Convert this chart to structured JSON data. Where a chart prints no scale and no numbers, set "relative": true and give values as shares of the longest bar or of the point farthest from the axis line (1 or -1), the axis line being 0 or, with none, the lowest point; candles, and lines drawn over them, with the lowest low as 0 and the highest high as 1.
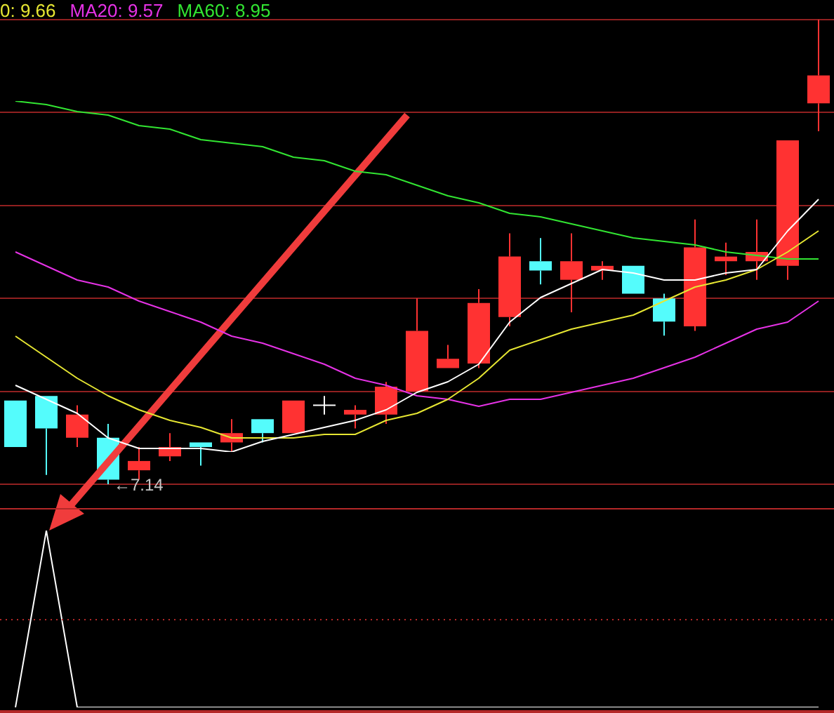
{
  "chart_data": [
    {
      "type": "candlestick",
      "relative": true,
      "grid": "y",
      "categories": [
        null,
        null,
        null,
        null,
        null,
        null,
        null,
        null,
        null,
        null,
        null,
        null,
        null,
        null,
        null,
        null,
        null,
        null,
        null,
        null,
        null,
        null,
        null,
        null,
        null,
        null,
        null
      ],
      "ohlc": [
        [
          0.18,
          0.18,
          0.08,
          0.08
        ],
        [
          0.19,
          0.19,
          0.02,
          0.12
        ],
        [
          0.1,
          0.17,
          0.08,
          0.15
        ],
        [
          0.1,
          0.13,
          0,
          0.01
        ],
        [
          0.03,
          0.08,
          0.01,
          0.05
        ],
        [
          0.06,
          0.11,
          0.05,
          0.08
        ],
        [
          0.09,
          0.09,
          0.04,
          0.08
        ],
        [
          0.09,
          0.14,
          0.07,
          0.11
        ],
        [
          0.14,
          0.14,
          0.09,
          0.11
        ],
        [
          0.11,
          0.18,
          0.11,
          0.18
        ],
        [
          0.17,
          0.19,
          0.15,
          0.17
        ],
        [
          0.15,
          0.17,
          0.12,
          0.16
        ],
        [
          0.15,
          0.22,
          0.13,
          0.21
        ],
        [
          0.2,
          0.4,
          0.2,
          0.33
        ],
        [
          0.25,
          0.3,
          0.25,
          0.27
        ],
        [
          0.26,
          0.42,
          0.25,
          0.39
        ],
        [
          0.36,
          0.54,
          0.34,
          0.49
        ],
        [
          0.48,
          0.53,
          0.43,
          0.46
        ],
        [
          0.44,
          0.54,
          0.37,
          0.48
        ],
        [
          0.46,
          0.48,
          0.44,
          0.47
        ],
        [
          0.47,
          0.47,
          0.41,
          0.41
        ],
        [
          0.4,
          0.41,
          0.32,
          0.35
        ],
        [
          0.34,
          0.57,
          0.33,
          0.51
        ],
        [
          0.48,
          0.52,
          0.45,
          0.49
        ],
        [
          0.48,
          0.57,
          0.44,
          0.5
        ],
        [
          0.47,
          0.74,
          0.44,
          0.74
        ],
        [
          0.82,
          1,
          0.76,
          0.88
        ]
      ],
      "colors": [
        "#54fcfc",
        "#54fcfc",
        "#ff3232",
        "#54fcfc",
        "#ff3232",
        "#ff3232",
        "#54fcfc",
        "#ff3232",
        "#54fcfc",
        "#ff3232",
        "#ffffff",
        "#ff3232",
        "#ff3232",
        "#ff3232",
        "#ff3232",
        "#ff3232",
        "#ff3232",
        "#54fcfc",
        "#ff3232",
        "#ff3232",
        "#54fcfc",
        "#54fcfc",
        "#ff3232",
        "#ff3232",
        "#ff3232",
        "#ff3232",
        "#ff3232"
      ],
      "annotations": [
        {
          "text": "←7.14",
          "y": 0
        }
      ]
    },
    {
      "type": "line",
      "relative": true,
      "categories": [
        null,
        null,
        null,
        null,
        null,
        null,
        null,
        null,
        null,
        null,
        null,
        null,
        null,
        null,
        null,
        null,
        null,
        null,
        null,
        null,
        null,
        null,
        null,
        null,
        null,
        null,
        null
      ],
      "series": [
        {
          "color": "#ffffff",
          "values": [
            0.19,
            0.15,
            0.11,
            0.04,
            0.01,
            0.01,
            0.01,
            0,
            0.03,
            0.05,
            0.07,
            0.09,
            0.12,
            0.17,
            0.2,
            0.25,
            0.37,
            0.44,
            0.48,
            0.52,
            0.51,
            0.49,
            0.49,
            0.51,
            0.52,
            0.63,
            0.72
          ]
        },
        {
          "name": "0: 9.66",
          "color": "#e6e632",
          "values": [
            0.33,
            0.27,
            0.21,
            0.16,
            0.12,
            0.09,
            0.07,
            0.04,
            0.04,
            0.04,
            0.05,
            0.05,
            0.09,
            0.11,
            0.15,
            0.21,
            0.29,
            0.32,
            0.35,
            0.37,
            0.39,
            0.43,
            0.47,
            0.49,
            0.52,
            0.57,
            0.63
          ]
        },
        {
          "name": "MA20: 9.57",
          "color": "#e632e6",
          "values": [
            0.57,
            0.53,
            0.49,
            0.47,
            0.43,
            0.4,
            0.37,
            0.33,
            0.31,
            0.28,
            0.25,
            0.21,
            0.19,
            0.16,
            0.15,
            0.13,
            0.15,
            0.15,
            0.17,
            0.19,
            0.21,
            0.24,
            0.27,
            0.31,
            0.35,
            0.37,
            0.43
          ]
        },
        {
          "name": "MA60: 8.95",
          "color": "#32e632",
          "values": [
            1,
            0.99,
            0.97,
            0.96,
            0.93,
            0.92,
            0.89,
            0.88,
            0.87,
            0.84,
            0.83,
            0.8,
            0.79,
            0.76,
            0.73,
            0.71,
            0.68,
            0.67,
            0.65,
            0.63,
            0.61,
            0.6,
            0.59,
            0.57,
            0.56,
            0.55,
            0.55
          ]
        }
      ]
    },
    {
      "type": "line",
      "relative": true,
      "marker": "none",
      "categories": [
        null,
        null,
        null,
        null,
        null,
        null,
        null,
        null,
        null,
        null,
        null,
        null,
        null,
        null,
        null,
        null,
        null,
        null,
        null,
        null,
        null,
        null,
        null,
        null,
        null,
        null,
        null
      ],
      "series": [
        {
          "color": "#ffffff",
          "values": [
            0,
            1,
            0,
            0,
            0,
            0,
            0,
            0,
            0,
            0,
            0,
            0,
            0,
            0,
            0,
            0,
            0,
            0,
            0,
            0,
            0,
            0,
            0,
            0,
            0,
            0,
            0
          ]
        }
      ],
      "ref_lines": [
        {
          "axis": "y",
          "value": 0.5,
          "color": "#b42828",
          "line_style": "dotted"
        }
      ]
    }
  ]
}
